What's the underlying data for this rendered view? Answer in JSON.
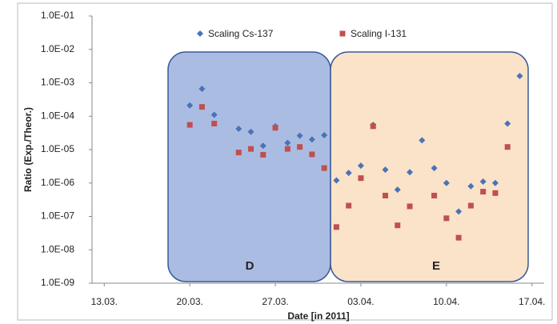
{
  "chart_data": {
    "type": "scatter",
    "x_title": "Date [in 2011]",
    "y_title": "Ratio (Exp./Theor.)",
    "log_y": true,
    "grid": false,
    "legend": "top",
    "annotations": [
      "D",
      "E"
    ],
    "xlim": [
      "2011-03-12",
      "2011-04-18"
    ],
    "xticks": [
      {
        "value": "2011-03-13",
        "label": "13.03."
      },
      {
        "value": "2011-03-20",
        "label": "20.03."
      },
      {
        "value": "2011-03-27",
        "label": "27.03."
      },
      {
        "value": "2011-04-03",
        "label": "03.04."
      },
      {
        "value": "2011-04-10",
        "label": "10.04."
      },
      {
        "value": "2011-04-17",
        "label": "17.04."
      }
    ],
    "ylim": [
      1e-09,
      0.1
    ],
    "yticks": [
      {
        "value": 1e-09,
        "label": "1.0E-09"
      },
      {
        "value": 1e-08,
        "label": "1.0E-08"
      },
      {
        "value": 1e-07,
        "label": "1.0E-07"
      },
      {
        "value": 1e-06,
        "label": "1.0E-06"
      },
      {
        "value": 1e-05,
        "label": "1.0E-05"
      },
      {
        "value": 0.0001,
        "label": "1.0E-04"
      },
      {
        "value": 0.001,
        "label": "1.0E-03"
      },
      {
        "value": 0.01,
        "label": "1.0E-02"
      },
      {
        "value": 0.1,
        "label": "1.0E-01"
      }
    ],
    "series": [
      {
        "name": "Scaling Cs-137",
        "color": "#4a72b8",
        "marker": "diamond",
        "x": [
          "2011-03-20",
          "2011-03-21",
          "2011-03-22",
          "2011-03-24",
          "2011-03-25",
          "2011-03-26",
          "2011-03-27",
          "2011-03-28",
          "2011-03-29",
          "2011-03-30",
          "2011-03-31",
          "2011-04-01",
          "2011-04-02",
          "2011-04-03",
          "2011-04-04",
          "2011-04-05",
          "2011-04-06",
          "2011-04-07",
          "2011-04-08",
          "2011-04-09",
          "2011-04-10",
          "2011-04-11",
          "2011-04-12",
          "2011-04-13",
          "2011-04-14",
          "2011-04-15",
          "2011-04-16"
        ],
        "values": [
          0.00021,
          0.00066,
          0.00011,
          4.2e-05,
          3.4e-05,
          1.3e-05,
          5e-05,
          1.6e-05,
          2.6e-05,
          2e-05,
          2.7e-05,
          1.2e-06,
          2e-06,
          3.3e-06,
          5.5e-05,
          2.5e-06,
          6.3e-07,
          2.1e-06,
          1.9e-05,
          2.8e-06,
          1e-06,
          1.4e-07,
          8e-07,
          1.1e-06,
          1e-06,
          6e-05,
          0.0016
        ]
      },
      {
        "name": "Scaling I-131",
        "color": "#c0504d",
        "marker": "square",
        "x": [
          "2011-03-20",
          "2011-03-21",
          "2011-03-22",
          "2011-03-24",
          "2011-03-25",
          "2011-03-26",
          "2011-03-27",
          "2011-03-28",
          "2011-03-29",
          "2011-03-30",
          "2011-03-31",
          "2011-04-01",
          "2011-04-02",
          "2011-04-03",
          "2011-04-04",
          "2011-04-05",
          "2011-04-06",
          "2011-04-07",
          "2011-04-09",
          "2011-04-10",
          "2011-04-11",
          "2011-04-12",
          "2011-04-13",
          "2011-04-14",
          "2011-04-15"
        ],
        "values": [
          5.5e-05,
          0.00019,
          6e-05,
          8.2e-06,
          1.05e-05,
          7e-06,
          4.5e-05,
          1.05e-05,
          1.2e-05,
          7.2e-06,
          2.8e-06,
          4.8e-08,
          2.1e-07,
          1.4e-06,
          5e-05,
          4.2e-07,
          5.4e-08,
          2e-07,
          4.2e-07,
          8.8e-08,
          2.3e-08,
          2.1e-07,
          5.5e-07,
          5e-07,
          1.2e-05
        ]
      }
    ]
  }
}
